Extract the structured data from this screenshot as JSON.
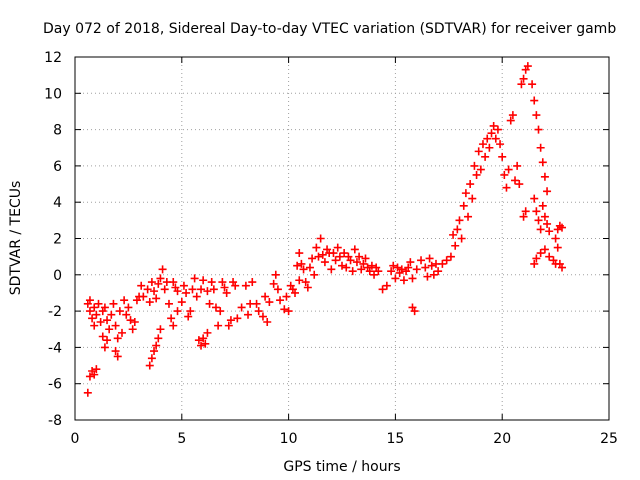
{
  "chart_data": {
    "type": "scatter",
    "title": "Day 072 of 2018, Sidereal Day-to-day VTEC variation (SDTVAR) for receiver gamb",
    "xlabel": "GPS time / hours",
    "ylabel": "SDTVAR / TECUs",
    "xlim": [
      0,
      25
    ],
    "ylim": [
      -8,
      12
    ],
    "xticks": [
      0,
      5,
      10,
      15,
      20,
      25
    ],
    "yticks": [
      -8,
      -6,
      -4,
      -2,
      0,
      2,
      4,
      6,
      8,
      10,
      12
    ],
    "grid": true,
    "marker": "plus",
    "series": [
      {
        "name": "SDTVAR",
        "color": "#ff0000",
        "points": [
          [
            0.6,
            -6.5
          ],
          [
            0.7,
            -5.6
          ],
          [
            0.8,
            -5.3
          ],
          [
            0.9,
            -5.5
          ],
          [
            1.0,
            -5.2
          ],
          [
            0.6,
            -1.6
          ],
          [
            0.7,
            -2.0
          ],
          [
            0.8,
            -2.4
          ],
          [
            0.9,
            -1.8
          ],
          [
            1.0,
            -2.2
          ],
          [
            1.1,
            -1.6
          ],
          [
            0.7,
            -1.4
          ],
          [
            0.9,
            -2.8
          ],
          [
            1.2,
            -2.6
          ],
          [
            1.3,
            -2.0
          ],
          [
            1.4,
            -1.8
          ],
          [
            1.5,
            -2.5
          ],
          [
            1.6,
            -3.0
          ],
          [
            1.3,
            -3.4
          ],
          [
            1.4,
            -4.0
          ],
          [
            1.5,
            -3.6
          ],
          [
            1.7,
            -2.2
          ],
          [
            1.8,
            -1.6
          ],
          [
            1.9,
            -2.8
          ],
          [
            2.0,
            -3.5
          ],
          [
            1.9,
            -4.2
          ],
          [
            2.0,
            -4.5
          ],
          [
            2.2,
            -3.2
          ],
          [
            2.1,
            -2.0
          ],
          [
            2.3,
            -1.4
          ],
          [
            2.4,
            -2.2
          ],
          [
            2.5,
            -1.8
          ],
          [
            2.6,
            -2.5
          ],
          [
            2.7,
            -3.0
          ],
          [
            2.8,
            -2.6
          ],
          [
            2.9,
            -1.4
          ],
          [
            3.0,
            -1.2
          ],
          [
            3.1,
            -0.6
          ],
          [
            3.2,
            -1.2
          ],
          [
            3.4,
            -0.8
          ],
          [
            3.5,
            -1.5
          ],
          [
            3.6,
            -0.4
          ],
          [
            3.7,
            -0.9
          ],
          [
            3.8,
            -1.3
          ],
          [
            3.9,
            -0.5
          ],
          [
            3.5,
            -5.0
          ],
          [
            3.6,
            -4.6
          ],
          [
            3.7,
            -4.2
          ],
          [
            3.8,
            -3.9
          ],
          [
            3.9,
            -3.5
          ],
          [
            4.0,
            -3.0
          ],
          [
            4.0,
            -0.2
          ],
          [
            4.1,
            0.3
          ],
          [
            4.2,
            -0.8
          ],
          [
            4.3,
            -0.4
          ],
          [
            4.4,
            -1.6
          ],
          [
            4.6,
            -0.4
          ],
          [
            4.7,
            -0.7
          ],
          [
            4.8,
            -0.9
          ],
          [
            4.5,
            -2.4
          ],
          [
            4.6,
            -2.8
          ],
          [
            4.8,
            -2.0
          ],
          [
            5.0,
            -1.5
          ],
          [
            5.1,
            -0.6
          ],
          [
            5.2,
            -1.0
          ],
          [
            5.3,
            -2.3
          ],
          [
            5.4,
            -2.0
          ],
          [
            5.5,
            -0.8
          ],
          [
            5.6,
            -0.2
          ],
          [
            5.7,
            -1.2
          ],
          [
            5.8,
            -3.6
          ],
          [
            5.9,
            -3.9
          ],
          [
            6.0,
            -3.5
          ],
          [
            6.1,
            -3.8
          ],
          [
            6.2,
            -3.2
          ],
          [
            5.9,
            -0.8
          ],
          [
            6.0,
            -0.3
          ],
          [
            6.2,
            -0.9
          ],
          [
            6.3,
            -1.6
          ],
          [
            6.4,
            -0.4
          ],
          [
            6.5,
            -0.8
          ],
          [
            6.6,
            -1.8
          ],
          [
            6.7,
            -2.8
          ],
          [
            6.8,
            -2.0
          ],
          [
            6.9,
            -0.4
          ],
          [
            7.0,
            -0.7
          ],
          [
            7.1,
            -1.0
          ],
          [
            7.2,
            -2.8
          ],
          [
            7.3,
            -2.5
          ],
          [
            7.4,
            -0.4
          ],
          [
            7.5,
            -0.6
          ],
          [
            7.6,
            -2.4
          ],
          [
            7.8,
            -1.8
          ],
          [
            8.0,
            -0.6
          ],
          [
            8.1,
            -2.2
          ],
          [
            8.2,
            -1.6
          ],
          [
            8.3,
            -0.4
          ],
          [
            8.5,
            -1.6
          ],
          [
            8.6,
            -2.0
          ],
          [
            8.8,
            -2.3
          ],
          [
            8.9,
            -1.2
          ],
          [
            9.0,
            -2.6
          ],
          [
            9.1,
            -1.5
          ],
          [
            9.3,
            -0.5
          ],
          [
            9.4,
            0.0
          ],
          [
            9.5,
            -0.8
          ],
          [
            9.6,
            -1.4
          ],
          [
            9.8,
            -1.9
          ],
          [
            9.9,
            -1.2
          ],
          [
            10.0,
            -2.0
          ],
          [
            10.1,
            -0.6
          ],
          [
            10.2,
            -0.8
          ],
          [
            10.3,
            -1.0
          ],
          [
            10.4,
            0.5
          ],
          [
            10.5,
            -0.3
          ],
          [
            10.5,
            1.2
          ],
          [
            10.6,
            0.6
          ],
          [
            10.7,
            0.3
          ],
          [
            10.8,
            -0.4
          ],
          [
            10.9,
            -0.7
          ],
          [
            11.0,
            0.4
          ],
          [
            11.1,
            0.9
          ],
          [
            11.2,
            0.0
          ],
          [
            11.3,
            1.5
          ],
          [
            11.4,
            1.0
          ],
          [
            11.5,
            2.0
          ],
          [
            11.6,
            1.1
          ],
          [
            11.7,
            0.7
          ],
          [
            11.8,
            1.4
          ],
          [
            11.9,
            1.2
          ],
          [
            12.0,
            0.3
          ],
          [
            12.1,
            1.2
          ],
          [
            12.2,
            0.8
          ],
          [
            12.3,
            1.5
          ],
          [
            12.4,
            1.0
          ],
          [
            12.5,
            0.5
          ],
          [
            12.6,
            1.2
          ],
          [
            12.7,
            0.4
          ],
          [
            12.8,
            1.0
          ],
          [
            12.9,
            0.8
          ],
          [
            13.0,
            0.2
          ],
          [
            13.1,
            1.4
          ],
          [
            13.2,
            0.7
          ],
          [
            13.3,
            1.0
          ],
          [
            13.4,
            0.3
          ],
          [
            13.5,
            0.6
          ],
          [
            13.6,
            0.9
          ],
          [
            13.7,
            0.4
          ],
          [
            13.8,
            0.2
          ],
          [
            13.9,
            0.5
          ],
          [
            14.0,
            0.0
          ],
          [
            14.1,
            0.4
          ],
          [
            14.2,
            0.2
          ],
          [
            14.4,
            -0.8
          ],
          [
            14.6,
            -0.6
          ],
          [
            14.8,
            0.2
          ],
          [
            14.9,
            0.5
          ],
          [
            15.0,
            -0.2
          ],
          [
            15.1,
            0.4
          ],
          [
            15.2,
            0.1
          ],
          [
            15.3,
            0.3
          ],
          [
            15.4,
            -0.3
          ],
          [
            15.5,
            0.2
          ],
          [
            15.6,
            0.4
          ],
          [
            15.7,
            0.7
          ],
          [
            15.8,
            -1.8
          ],
          [
            15.9,
            -2.0
          ],
          [
            15.8,
            -0.2
          ],
          [
            16.0,
            0.3
          ],
          [
            16.2,
            0.8
          ],
          [
            16.4,
            0.4
          ],
          [
            16.5,
            -0.1
          ],
          [
            16.6,
            0.9
          ],
          [
            16.7,
            0.5
          ],
          [
            16.8,
            0.0
          ],
          [
            16.9,
            0.6
          ],
          [
            17.0,
            0.2
          ],
          [
            17.2,
            0.6
          ],
          [
            17.4,
            0.8
          ],
          [
            17.6,
            1.0
          ],
          [
            17.7,
            2.2
          ],
          [
            17.8,
            1.6
          ],
          [
            17.9,
            2.5
          ],
          [
            18.0,
            3.0
          ],
          [
            18.1,
            2.0
          ],
          [
            18.2,
            3.8
          ],
          [
            18.3,
            4.5
          ],
          [
            18.4,
            3.2
          ],
          [
            18.5,
            5.0
          ],
          [
            18.6,
            4.2
          ],
          [
            18.7,
            6.0
          ],
          [
            18.8,
            5.5
          ],
          [
            18.9,
            6.8
          ],
          [
            19.0,
            5.8
          ],
          [
            19.1,
            7.2
          ],
          [
            19.2,
            6.5
          ],
          [
            19.3,
            7.5
          ],
          [
            19.4,
            7.0
          ],
          [
            19.5,
            7.8
          ],
          [
            19.6,
            8.2
          ],
          [
            19.7,
            7.5
          ],
          [
            19.8,
            8.0
          ],
          [
            19.9,
            7.2
          ],
          [
            20.0,
            6.5
          ],
          [
            20.1,
            5.5
          ],
          [
            20.2,
            4.8
          ],
          [
            20.3,
            5.8
          ],
          [
            20.4,
            8.5
          ],
          [
            20.5,
            8.8
          ],
          [
            20.6,
            5.2
          ],
          [
            20.7,
            6.0
          ],
          [
            20.8,
            5.0
          ],
          [
            20.9,
            10.5
          ],
          [
            21.0,
            10.8
          ],
          [
            21.1,
            11.3
          ],
          [
            21.2,
            11.5
          ],
          [
            21.0,
            3.2
          ],
          [
            21.1,
            3.5
          ],
          [
            21.4,
            10.5
          ],
          [
            21.5,
            9.6
          ],
          [
            21.6,
            8.8
          ],
          [
            21.7,
            8.0
          ],
          [
            21.8,
            7.0
          ],
          [
            21.9,
            6.2
          ],
          [
            22.0,
            5.4
          ],
          [
            22.1,
            4.6
          ],
          [
            21.5,
            4.2
          ],
          [
            21.6,
            3.5
          ],
          [
            21.7,
            3.0
          ],
          [
            21.8,
            2.5
          ],
          [
            21.9,
            3.8
          ],
          [
            22.0,
            3.2
          ],
          [
            22.1,
            2.8
          ],
          [
            22.2,
            2.4
          ],
          [
            21.5,
            0.6
          ],
          [
            21.6,
            0.9
          ],
          [
            21.8,
            1.2
          ],
          [
            22.0,
            1.4
          ],
          [
            22.2,
            1.0
          ],
          [
            22.4,
            0.8
          ],
          [
            22.5,
            2.0
          ],
          [
            22.6,
            2.5
          ],
          [
            22.7,
            2.7
          ],
          [
            22.8,
            2.6
          ],
          [
            22.5,
            0.6
          ],
          [
            22.6,
            1.5
          ],
          [
            22.7,
            0.6
          ],
          [
            22.8,
            0.4
          ]
        ]
      }
    ]
  }
}
